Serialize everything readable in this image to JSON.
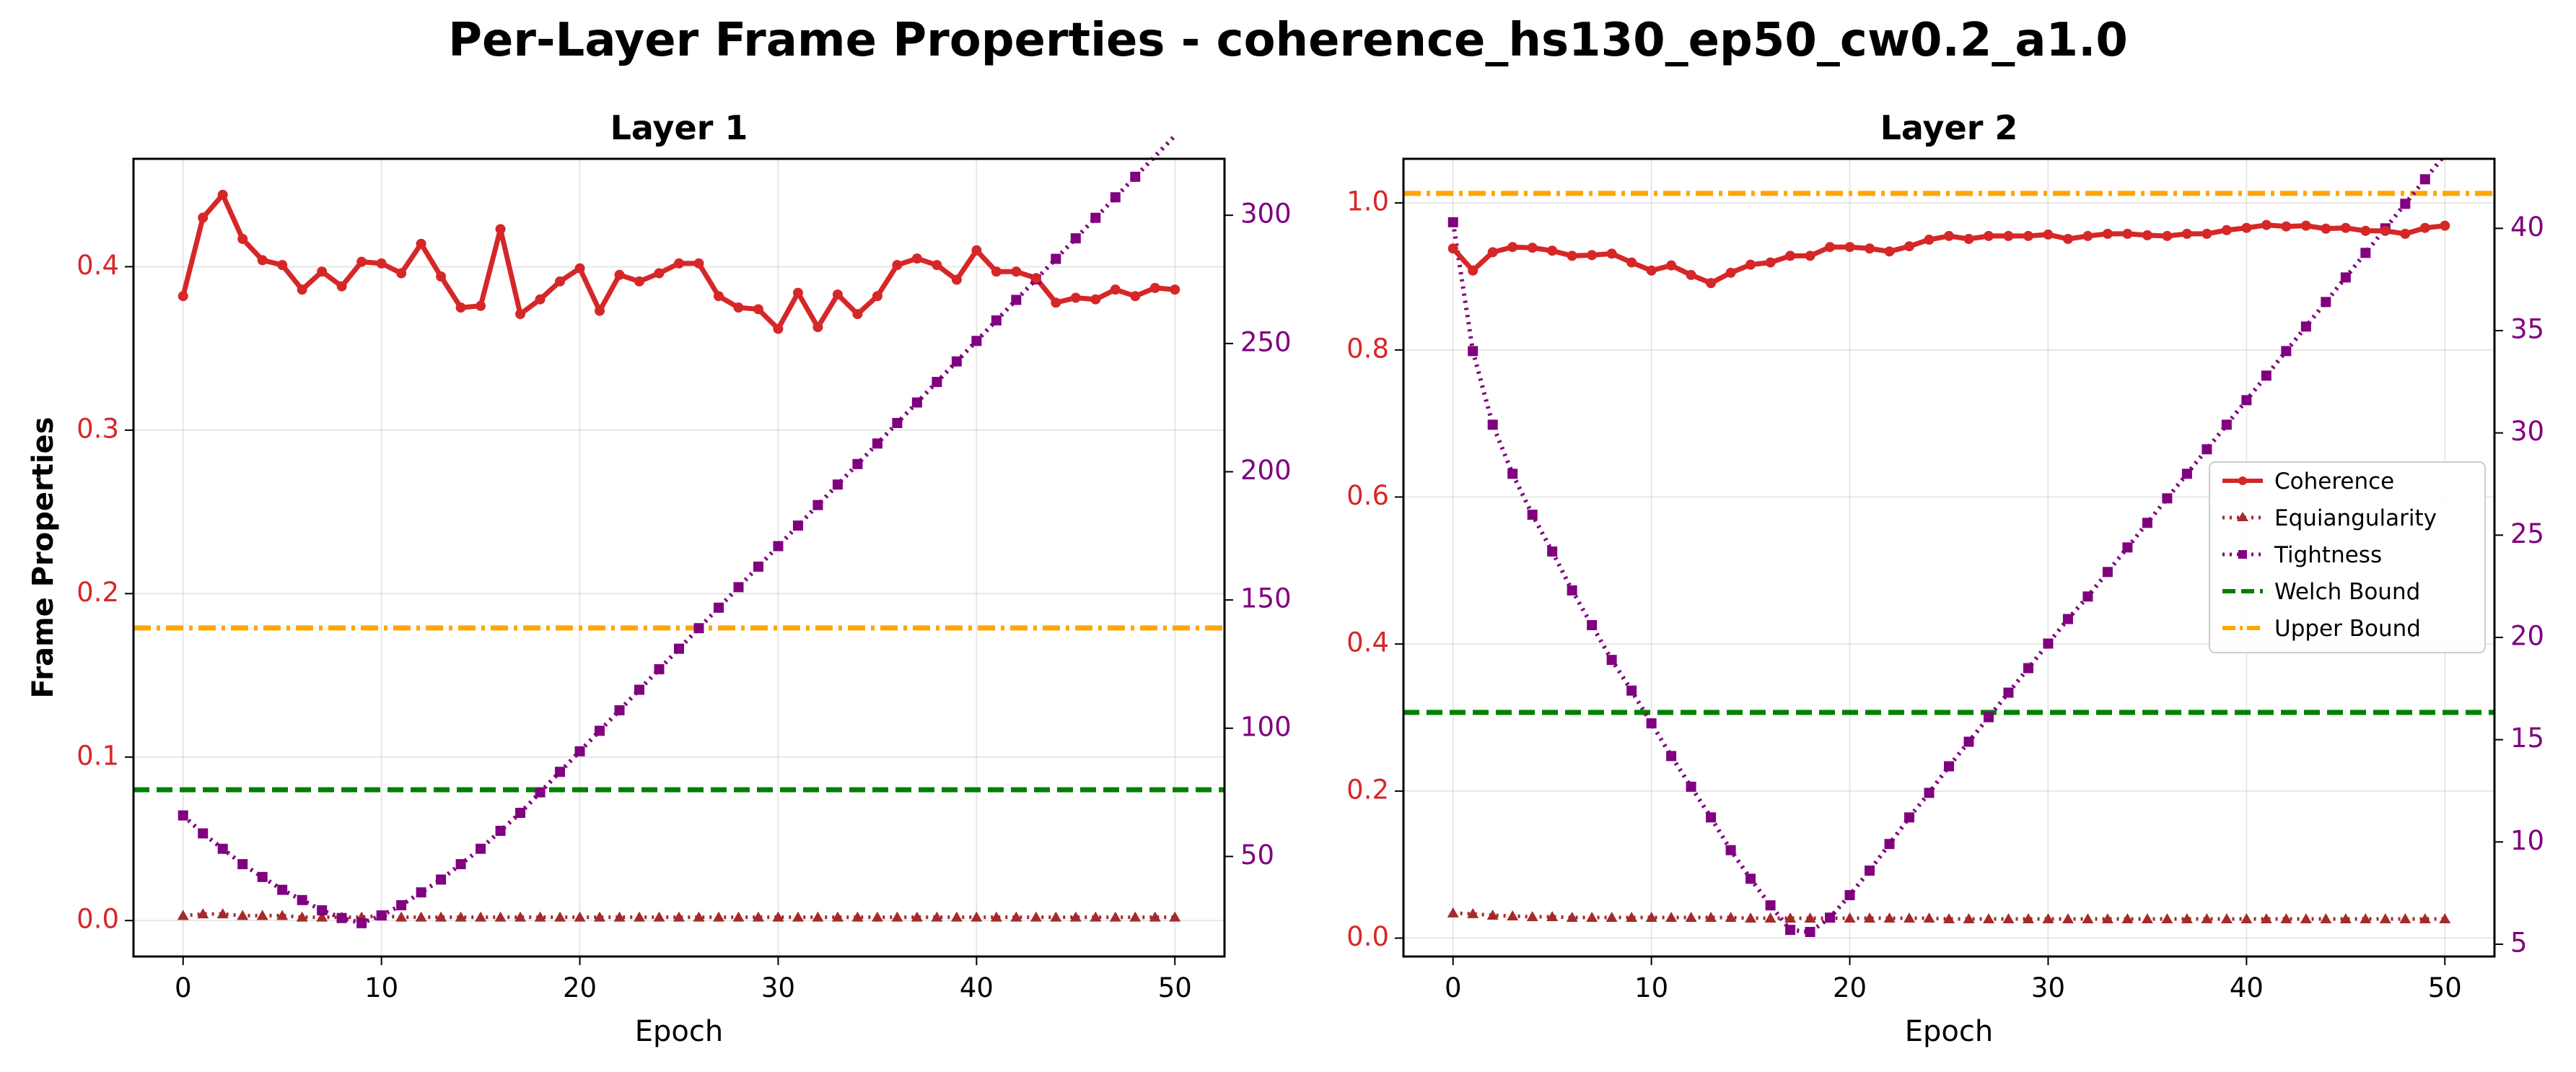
{
  "chart_data": {
    "title": "Per-Layer Frame Properties - coherence_hs130_ep50_cw0.2_a1.0",
    "colors": {
      "coherence": "#d62728",
      "equiangularity": "#a52a2a",
      "tightness": "#800080",
      "welch": "#008000",
      "upper": "#ffa500",
      "left_ticks": "#d62728",
      "right_ticks": "#800080"
    },
    "legend": {
      "placement": "center-right (Layer 2)",
      "entries": [
        "Coherence",
        "Equiangularity",
        "Tightness",
        "Welch Bound",
        "Upper Bound"
      ]
    },
    "panels": [
      {
        "type": "line",
        "title": "Layer 1",
        "xlabel": "Epoch",
        "ylabel": "Frame Properties",
        "xlim": [
          -2.5,
          52.5
        ],
        "xticks": [
          0,
          10,
          20,
          30,
          40,
          50
        ],
        "ylim_left": [
          -0.022,
          0.466
        ],
        "yticks_left": [
          "0.0",
          "0.1",
          "0.2",
          "0.3",
          "0.4"
        ],
        "ylim_right": [
          11,
          322
        ],
        "yticks_right": [
          50,
          100,
          150,
          200,
          250,
          300
        ],
        "grid": true,
        "welch_bound": 0.08,
        "upper_bound": 0.179,
        "coherence": [
          0.382,
          0.43,
          0.444,
          0.417,
          0.404,
          0.401,
          0.386,
          0.397,
          0.388,
          0.403,
          0.402,
          0.396,
          0.414,
          0.394,
          0.375,
          0.376,
          0.423,
          0.371,
          0.38,
          0.391,
          0.399,
          0.373,
          0.395,
          0.391,
          0.396,
          0.402,
          0.402,
          0.382,
          0.375,
          0.374,
          0.362,
          0.384,
          0.363,
          0.383,
          0.371,
          0.382,
          0.401,
          0.405,
          0.401,
          0.392,
          0.41,
          0.397,
          0.397,
          0.393,
          0.378,
          0.381,
          0.38,
          0.386,
          0.382,
          0.387,
          0.386
        ],
        "equiangularity": [
          0.003,
          0.004,
          0.004,
          0.003,
          0.003,
          0.003,
          0.002,
          0.002,
          0.002,
          0.002,
          0.003,
          0.002,
          0.002,
          0.002,
          0.002,
          0.002,
          0.002,
          0.002,
          0.002,
          0.002,
          0.002,
          0.002,
          0.002,
          0.002,
          0.002,
          0.002,
          0.002,
          0.002,
          0.002,
          0.002,
          0.002,
          0.002,
          0.002,
          0.002,
          0.002,
          0.002,
          0.002,
          0.002,
          0.002,
          0.002,
          0.002,
          0.002,
          0.002,
          0.002,
          0.002,
          0.002,
          0.002,
          0.002,
          0.002,
          0.002,
          0.002
        ],
        "tightness": [
          66,
          59,
          53,
          47,
          42,
          37,
          33,
          29,
          26,
          24,
          27,
          31,
          36,
          41,
          47,
          53,
          60,
          67,
          75,
          83,
          91,
          99,
          107,
          115,
          123,
          131,
          139,
          147,
          155,
          163,
          171,
          179,
          187,
          195,
          203,
          211,
          219,
          227,
          235,
          243,
          251,
          259,
          267,
          275,
          283,
          291,
          299,
          307,
          315,
          323,
          331
        ]
      },
      {
        "type": "line",
        "title": "Layer 2",
        "xlabel": "Epoch",
        "ylabel": "",
        "xlim": [
          -2.5,
          52.5
        ],
        "xticks": [
          0,
          10,
          20,
          30,
          40,
          50
        ],
        "ylim_left": [
          -0.025,
          1.06
        ],
        "yticks_left": [
          "0.0",
          "0.2",
          "0.4",
          "0.6",
          "0.8",
          "1.0"
        ],
        "ylim_right": [
          4.4,
          43.4
        ],
        "yticks_right": [
          5,
          10,
          15,
          20,
          25,
          30,
          35,
          40
        ],
        "grid": true,
        "welch_bound": 0.307,
        "upper_bound": 1.013,
        "coherence": [
          0.938,
          0.908,
          0.933,
          0.94,
          0.939,
          0.935,
          0.928,
          0.929,
          0.931,
          0.919,
          0.908,
          0.915,
          0.902,
          0.891,
          0.905,
          0.916,
          0.919,
          0.928,
          0.928,
          0.94,
          0.94,
          0.938,
          0.934,
          0.941,
          0.95,
          0.955,
          0.951,
          0.955,
          0.955,
          0.955,
          0.957,
          0.951,
          0.955,
          0.958,
          0.958,
          0.956,
          0.955,
          0.958,
          0.958,
          0.963,
          0.966,
          0.97,
          0.968,
          0.969,
          0.965,
          0.966,
          0.962,
          0.962,
          0.958,
          0.966,
          0.969
        ],
        "equiangularity": [
          0.034,
          0.033,
          0.031,
          0.03,
          0.029,
          0.029,
          0.028,
          0.028,
          0.028,
          0.028,
          0.028,
          0.028,
          0.028,
          0.028,
          0.028,
          0.027,
          0.027,
          0.027,
          0.027,
          0.027,
          0.027,
          0.027,
          0.027,
          0.027,
          0.027,
          0.026,
          0.026,
          0.026,
          0.026,
          0.026,
          0.026,
          0.026,
          0.026,
          0.026,
          0.026,
          0.026,
          0.026,
          0.026,
          0.026,
          0.026,
          0.026,
          0.026,
          0.026,
          0.026,
          0.026,
          0.026,
          0.026,
          0.026,
          0.026,
          0.026,
          0.026
        ],
        "tightness": [
          40.3,
          34.0,
          30.4,
          28.0,
          26.0,
          24.2,
          22.3,
          20.6,
          18.9,
          17.4,
          15.8,
          14.2,
          12.7,
          11.2,
          9.6,
          8.2,
          6.9,
          5.7,
          5.6,
          6.3,
          7.4,
          8.6,
          9.9,
          11.2,
          12.4,
          13.7,
          14.9,
          16.1,
          17.3,
          18.5,
          19.7,
          20.9,
          22.0,
          23.2,
          24.4,
          25.6,
          26.8,
          28.0,
          29.2,
          30.4,
          31.6,
          32.8,
          34.0,
          35.2,
          36.4,
          37.6,
          38.8,
          40.0,
          41.2,
          42.4,
          43.6
        ]
      }
    ]
  }
}
